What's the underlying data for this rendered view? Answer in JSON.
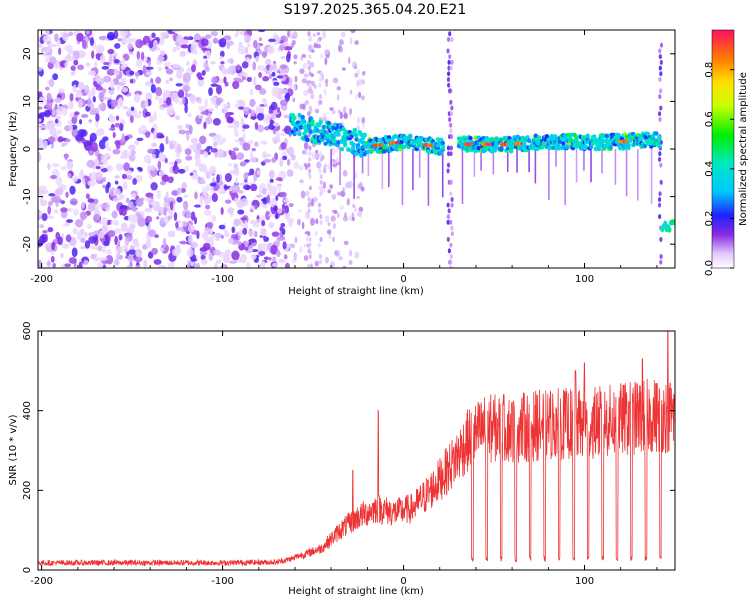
{
  "title": "S197.2025.365.04.20.E21",
  "chart_data": [
    {
      "type": "heatmap",
      "name": "spectrogram",
      "xlabel": "Height of straight line (km)",
      "ylabel": "Frequency (Hz)",
      "xlim": [
        -202,
        150
      ],
      "ylim": [
        -25,
        25
      ],
      "xticks": [
        -200,
        -100,
        0,
        100
      ],
      "yticks": [
        -20,
        -10,
        0,
        10,
        20
      ],
      "colorbar": {
        "label": "Normalized spectral amplitude",
        "range": [
          0,
          0.96
        ],
        "ticks": [
          0.0,
          0.2,
          0.4,
          0.6,
          0.8
        ]
      },
      "signal_ridge": [
        {
          "x": -60,
          "y": 5
        },
        {
          "x": -50,
          "y": 4
        },
        {
          "x": -40,
          "y": 3
        },
        {
          "x": -30,
          "y": 2
        },
        {
          "x": -20,
          "y": 0.5
        },
        {
          "x": -10,
          "y": 1
        },
        {
          "x": 0,
          "y": 1.5
        },
        {
          "x": 10,
          "y": 1
        },
        {
          "x": 20,
          "y": 0.5
        },
        {
          "x": 25,
          "y": 0.5
        },
        {
          "x": 30,
          "y": 1
        },
        {
          "x": 40,
          "y": 1
        },
        {
          "x": 60,
          "y": 1
        },
        {
          "x": 80,
          "y": 1.5
        },
        {
          "x": 100,
          "y": 1.5
        },
        {
          "x": 120,
          "y": 1.5
        },
        {
          "x": 140,
          "y": 2
        }
      ],
      "tail_segment": {
        "x": [
          143,
          150
        ],
        "y": -16
      }
    },
    {
      "type": "line",
      "name": "snr",
      "xlabel": "Height of straight line (km)",
      "ylabel": "SNR (10 * v/v)",
      "xlim": [
        -202,
        150
      ],
      "ylim": [
        0,
        600
      ],
      "xticks": [
        -200,
        -100,
        0,
        100
      ],
      "yticks": [
        0,
        200,
        400,
        600
      ],
      "color": "#ee3333",
      "envelope": [
        {
          "x": -200,
          "y": 18
        },
        {
          "x": -150,
          "y": 18
        },
        {
          "x": -100,
          "y": 18
        },
        {
          "x": -70,
          "y": 20
        },
        {
          "x": -55,
          "y": 35
        },
        {
          "x": -45,
          "y": 50
        },
        {
          "x": -35,
          "y": 90
        },
        {
          "x": -25,
          "y": 120
        },
        {
          "x": -15,
          "y": 140
        },
        {
          "x": -5,
          "y": 130
        },
        {
          "x": 5,
          "y": 140
        },
        {
          "x": 15,
          "y": 180
        },
        {
          "x": 25,
          "y": 230
        },
        {
          "x": 35,
          "y": 290
        },
        {
          "x": 45,
          "y": 320
        },
        {
          "x": 60,
          "y": 320
        },
        {
          "x": 80,
          "y": 330
        },
        {
          "x": 100,
          "y": 330
        },
        {
          "x": 120,
          "y": 340
        },
        {
          "x": 140,
          "y": 350
        },
        {
          "x": 150,
          "y": 350
        }
      ],
      "spikes": [
        {
          "x": -28,
          "y": 250
        },
        {
          "x": -14,
          "y": 400
        },
        {
          "x": 55,
          "y": 420
        },
        {
          "x": 95,
          "y": 500
        },
        {
          "x": 100,
          "y": 520
        },
        {
          "x": 132,
          "y": 530
        },
        {
          "x": 146,
          "y": 600
        }
      ],
      "dropouts_x": [
        38,
        46,
        54,
        62,
        70,
        78,
        86,
        94,
        102,
        110,
        118,
        126,
        134,
        142
      ]
    }
  ]
}
